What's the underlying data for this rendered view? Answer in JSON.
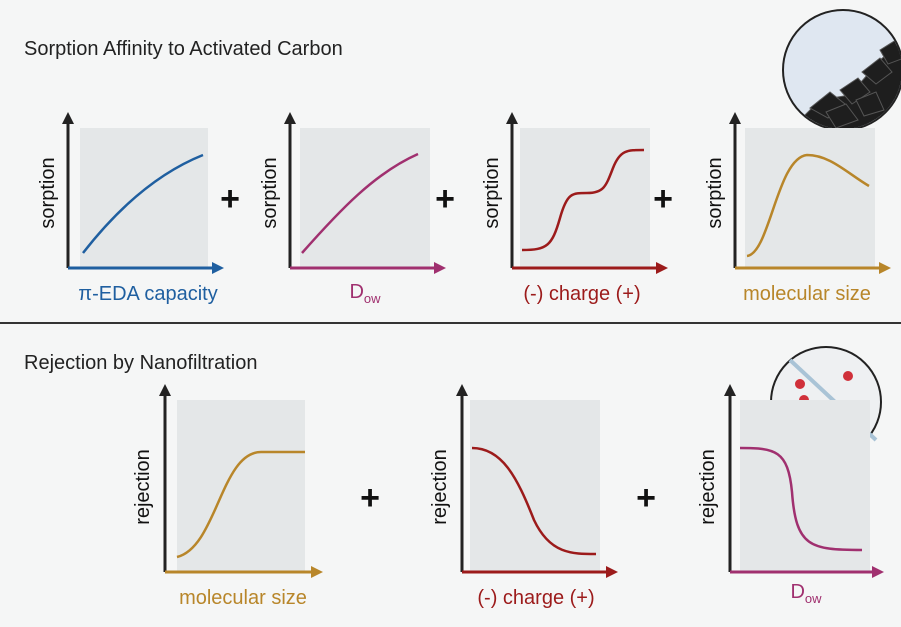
{
  "sections": [
    {
      "title": "Sorption Affinity to Activated Carbon",
      "panels": [
        {
          "y_label": "sorption",
          "x_label": "π-EDA capacity"
        },
        {
          "y_label": "sorption",
          "x_label": {
            "main": "D",
            "sub": "ow"
          }
        },
        {
          "y_label": "sorption",
          "x_label": "(-) charge (+)"
        },
        {
          "y_label": "sorption",
          "x_label": "molecular size"
        }
      ]
    },
    {
      "title": "Rejection by Nanofiltration",
      "panels": [
        {
          "y_label": "rejection",
          "x_label": "molecular size"
        },
        {
          "y_label": "rejection",
          "x_label": "(-) charge (+)"
        },
        {
          "y_label": "rejection",
          "x_label": {
            "main": "D",
            "sub": "ow"
          }
        }
      ]
    }
  ]
}
